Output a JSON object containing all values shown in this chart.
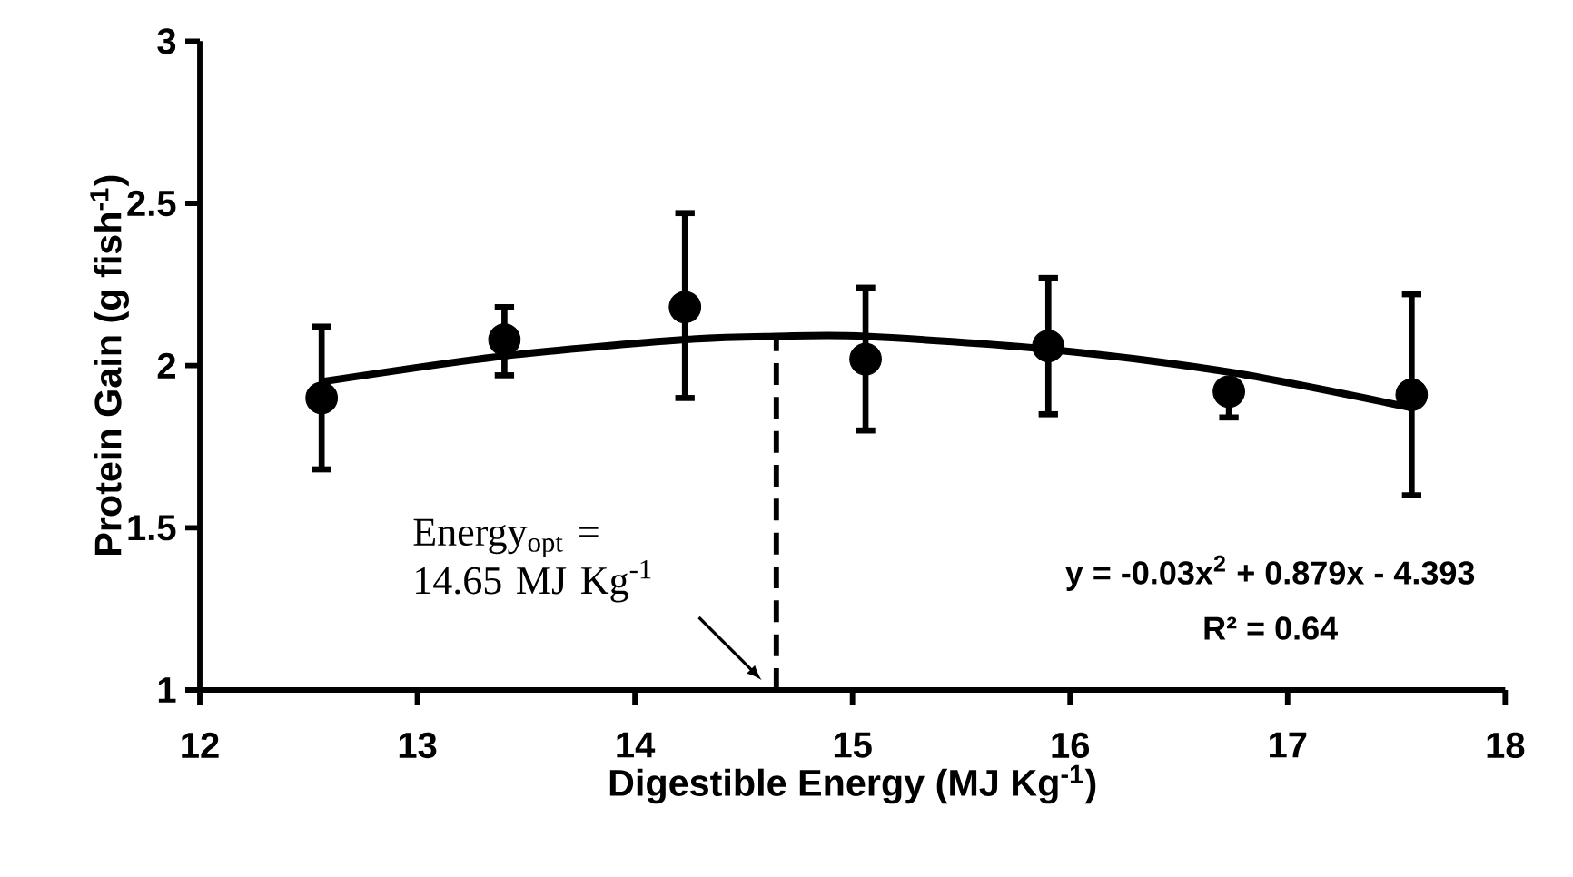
{
  "chart_data": {
    "type": "scatter",
    "xlabel": "Digestible Energy (MJ Kg$^{-1}$)",
    "ylabel": "Protein Gain (g fish$^{-1}$)",
    "xlim": [
      12,
      18
    ],
    "ylim": [
      1,
      3
    ],
    "xticks": [
      12,
      13,
      14,
      15,
      16,
      17,
      18
    ],
    "yticks": [
      1,
      1.5,
      2,
      2.5,
      3
    ],
    "marker": "circle",
    "series": [
      {
        "color": "#000000",
        "x": [
          12.56,
          13.4,
          14.23,
          15.06,
          15.9,
          16.73,
          17.57
        ],
        "values": [
          1.9,
          2.08,
          2.18,
          2.02,
          2.06,
          1.92,
          1.91
        ],
        "errors": [
          [
            1.68,
            2.12
          ],
          [
            1.97,
            2.18
          ],
          [
            1.9,
            2.47
          ],
          [
            1.8,
            2.24
          ],
          [
            1.85,
            2.27
          ],
          [
            1.84,
            1.92
          ],
          [
            1.6,
            2.22
          ]
        ]
      },
      {
        "type": "line",
        "color": "#000000",
        "marker": "none",
        "x": [
          12.56,
          13.4,
          14.23,
          14.65,
          15.06,
          15.9,
          16.73,
          17.57
        ],
        "values": [
          1.95,
          2.03,
          2.08,
          2.09,
          2.09,
          2.05,
          1.98,
          1.87
        ]
      }
    ],
    "ref_lines": [
      {
        "axis": "x",
        "value": 14.65,
        "line_style": "dashed",
        "color": "#000000",
        "label": "Energy$_{opt}$ = 14.65 MJ Kg$^{-1}$"
      }
    ],
    "annotations": [
      "y = -0.03x$^{2}$ + 0.879x - 4.393",
      "R² = 0.64"
    ]
  }
}
